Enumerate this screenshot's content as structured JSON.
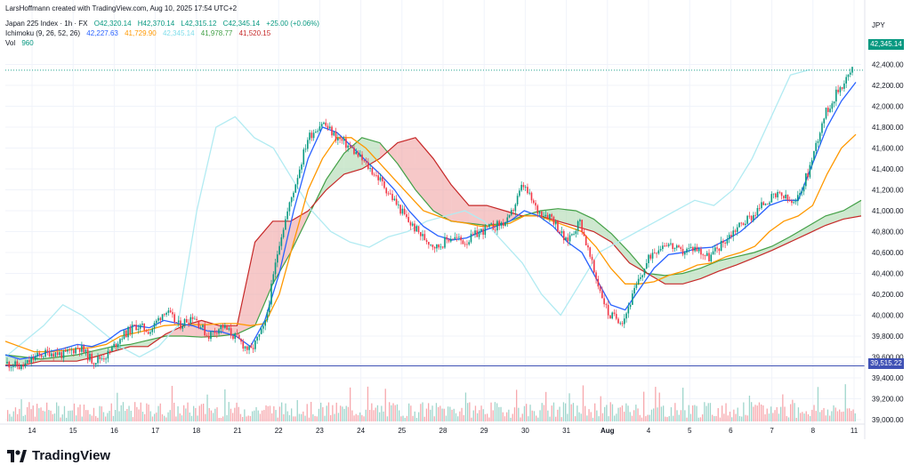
{
  "header": {
    "creator": "LarsHoffmann created with TradingView.com, Aug 10, 2025 17:54 UTC+2",
    "symbol": "Japan 225 Index · 1h · FX",
    "ohlc": {
      "o": "O42,320.14",
      "h": "H42,370.14",
      "l": "L42,315.12",
      "c": "C42,345.14",
      "chg": "+25.00 (+0.06%)"
    },
    "ichimoku_label": "Ichimoku (9, 26, 52, 26)",
    "ichimoku_values": [
      "42,227.63",
      "41,729.90",
      "42,345.14",
      "41,978.77",
      "41,520.15"
    ],
    "vol_label": "Vol",
    "vol_value": "960"
  },
  "price_axis": {
    "unit": "JPY",
    "last_price_tag": "42,345.14",
    "hline_tag": "39,515.22"
  },
  "brand": "TradingView",
  "colors": {
    "up": "#089981",
    "down": "#f23645",
    "tenkan": "#2962ff",
    "kijun": "#ff9800",
    "lagging": "#b2ebf2",
    "spanA": "#43a047",
    "spanB": "#c62828",
    "cloud_up": "#a5d6a7",
    "cloud_down": "#ef9a9a",
    "hline": "#3f51b5"
  },
  "chart_data": {
    "type": "candlestick",
    "timeframe": "1h",
    "yticks": [
      39000,
      39200,
      39400,
      39600,
      39800,
      40000,
      40200,
      40400,
      40600,
      40800,
      41000,
      41200,
      41400,
      41600,
      41800,
      42000,
      42200,
      42400
    ],
    "ytick_labels": [
      "39,000.00",
      "39,200.00",
      "39,400.00",
      "39,600.00",
      "39,800.00",
      "40,000.00",
      "40,200.00",
      "40,400.00",
      "40,600.00",
      "40,800.00",
      "41,000.00",
      "41,200.00",
      "41,400.00",
      "41,600.00",
      "41,800.00",
      "42,000.00",
      "42,200.00",
      "42,400.00"
    ],
    "xticks": [
      "14",
      "15",
      "16",
      "17",
      "18",
      "21",
      "22",
      "23",
      "24",
      "25",
      "28",
      "29",
      "30",
      "31",
      "Aug",
      "4",
      "5",
      "6",
      "7",
      "8",
      "11"
    ],
    "close_path": [
      39540,
      39500,
      39600,
      39650,
      39620,
      39700,
      39560,
      39620,
      39800,
      39900,
      39850,
      40050,
      39900,
      40000,
      39800,
      39900,
      39780,
      39650,
      39900,
      40700,
      41200,
      41700,
      41850,
      41700,
      41600,
      41450,
      41300,
      41100,
      40900,
      40750,
      40650,
      40750,
      40700,
      40800,
      40850,
      40900,
      41250,
      41000,
      40950,
      40700,
      40900,
      40400,
      40000,
      39950,
      40300,
      40600,
      40700,
      40600,
      40650,
      40550,
      40700,
      40850,
      40950,
      41100,
      41150,
      41050,
      41400,
      41900,
      42150,
      42350
    ],
    "tenkan_path": [
      39620,
      39580,
      39600,
      39650,
      39680,
      39720,
      39700,
      39750,
      39850,
      39900,
      39880,
      39950,
      39920,
      39900,
      39850,
      39840,
      39800,
      39700,
      39950,
      40400,
      41000,
      41500,
      41800,
      41750,
      41620,
      41480,
      41350,
      41200,
      41000,
      40850,
      40760,
      40720,
      40740,
      40800,
      40850,
      40900,
      41000,
      40950,
      40850,
      40700,
      40600,
      40350,
      40100,
      40050,
      40250,
      40450,
      40580,
      40600,
      40640,
      40650,
      40720,
      40800,
      40920,
      41050,
      41100,
      41100,
      41450,
      41800,
      42050,
      42230
    ],
    "kijun_path": [
      39750,
      39700,
      39650,
      39650,
      39660,
      39680,
      39690,
      39720,
      39800,
      39830,
      39860,
      39900,
      39910,
      39910,
      39910,
      39920,
      39920,
      39900,
      39920,
      40200,
      40700,
      41200,
      41500,
      41700,
      41700,
      41600,
      41450,
      41300,
      41150,
      41000,
      40950,
      40900,
      40880,
      40850,
      40860,
      40880,
      40950,
      40950,
      40900,
      40850,
      40800,
      40650,
      40450,
      40300,
      40300,
      40320,
      40380,
      40420,
      40480,
      40500,
      40560,
      40600,
      40660,
      40800,
      40900,
      40950,
      41050,
      41350,
      41600,
      41730
    ],
    "lagging_path": [
      39600,
      39750,
      39900,
      40100,
      40000,
      39850,
      39700,
      39600,
      39700,
      39900,
      41000,
      41800,
      41900,
      41700,
      41600,
      41300,
      41000,
      40800,
      40700,
      40650,
      40750,
      40800,
      40900,
      40950,
      41000,
      40900,
      40700,
      40500,
      40200,
      40000,
      40300,
      40600,
      40700,
      40800,
      40900,
      41000,
      41100,
      41050,
      41200,
      41500,
      41900,
      42300,
      42350
    ],
    "span_a_path": [
      39620,
      39600,
      39580,
      39600,
      39620,
      39660,
      39700,
      39720,
      39760,
      39800,
      39800,
      39790,
      39800,
      39820,
      39900,
      40300,
      40600,
      40950,
      41300,
      41550,
      41700,
      41650,
      41450,
      41200,
      41000,
      40900,
      40880,
      40860,
      40880,
      40950,
      41000,
      41020,
      41000,
      40920,
      40780,
      40600,
      40400,
      40380,
      40400,
      40450,
      40520,
      40560,
      40600,
      40660,
      40750,
      40850,
      40950,
      41000,
      41100
    ],
    "span_b_path": [
      39520,
      39520,
      39560,
      39560,
      39560,
      39600,
      39650,
      39700,
      39700,
      39820,
      39900,
      39950,
      39900,
      39900,
      40700,
      40900,
      40900,
      41000,
      41200,
      41350,
      41400,
      41500,
      41650,
      41700,
      41500,
      41250,
      41050,
      41050,
      41000,
      40950,
      40950,
      40900,
      40850,
      40800,
      40700,
      40500,
      40400,
      40300,
      40300,
      40350,
      40420,
      40480,
      40550,
      40620,
      40700,
      40780,
      40860,
      40920,
      40950
    ],
    "horizontal_line": 39515.22,
    "last_price": 42345.14
  }
}
